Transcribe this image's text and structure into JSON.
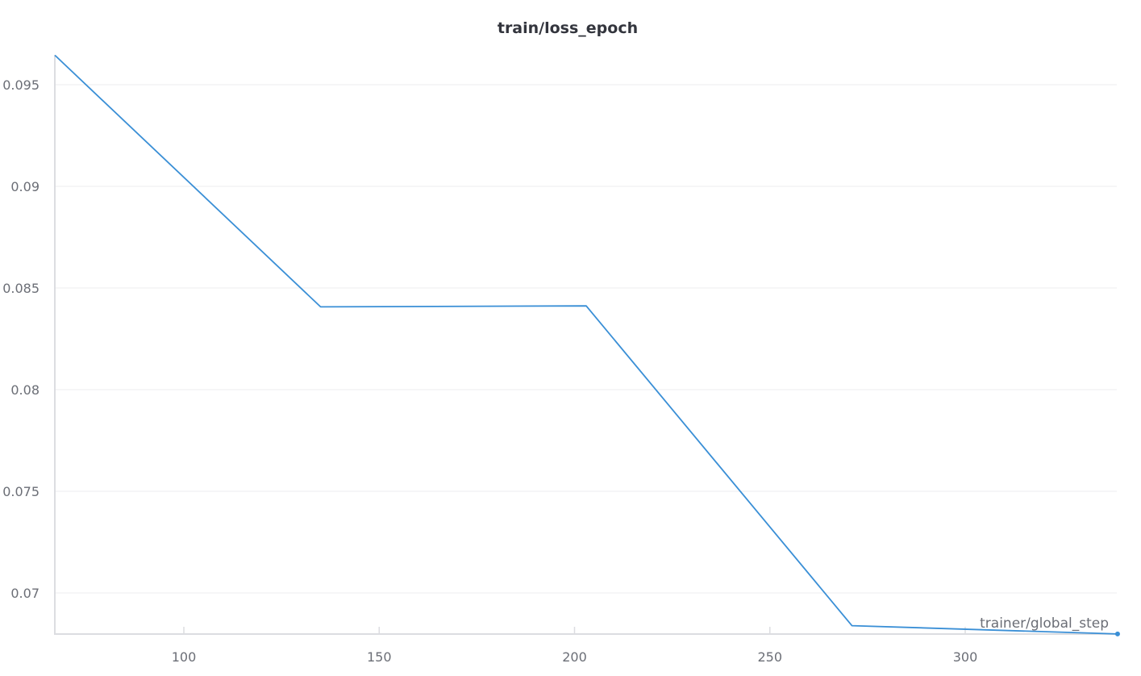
{
  "chart_data": {
    "type": "line",
    "title": "train/loss_epoch",
    "xlabel": "trainer/global_step",
    "ylabel": "",
    "xlim": [
      67,
      339
    ],
    "ylim": [
      0.068,
      0.0965
    ],
    "x_ticks": [
      100,
      150,
      200,
      250,
      300
    ],
    "y_ticks": [
      0.07,
      0.075,
      0.08,
      0.085,
      0.09,
      0.095
    ],
    "y_tick_labels": [
      "0.07",
      "0.075",
      "0.08",
      "0.085",
      "0.09",
      "0.095"
    ],
    "grid": true,
    "series": [
      {
        "color": "#3a8fd6",
        "x": [
          67,
          135,
          203,
          271,
          339
        ],
        "y": [
          0.09645,
          0.08407,
          0.08412,
          0.06839,
          0.06798
        ]
      }
    ]
  }
}
